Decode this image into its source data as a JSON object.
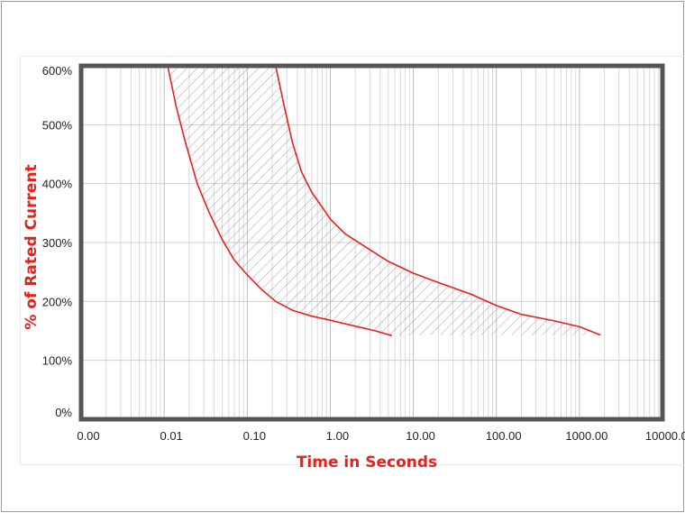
{
  "chart_data": {
    "type": "line",
    "title": "",
    "xlabel": "Time in Seconds",
    "ylabel": "% of Rated Current",
    "x_scale": "log",
    "xlim": [
      0.001,
      10000
    ],
    "ylim": [
      0,
      600
    ],
    "x_ticks": [
      {
        "value": 0.001,
        "label": "0.00"
      },
      {
        "value": 0.01,
        "label": "0.01"
      },
      {
        "value": 0.1,
        "label": "0.10"
      },
      {
        "value": 1,
        "label": "1.00"
      },
      {
        "value": 10,
        "label": "10.00"
      },
      {
        "value": 100,
        "label": "100.00"
      },
      {
        "value": 1000,
        "label": "1000.00"
      },
      {
        "value": 10000,
        "label": "10000.00"
      }
    ],
    "y_ticks": [
      {
        "value": 0,
        "label": "0%"
      },
      {
        "value": 100,
        "label": "100%"
      },
      {
        "value": 200,
        "label": "200%"
      },
      {
        "value": 300,
        "label": "300%"
      },
      {
        "value": 400,
        "label": "400%"
      },
      {
        "value": 500,
        "label": "500%"
      },
      {
        "value": 600,
        "label": "600%"
      }
    ],
    "grid": true,
    "legend": "none",
    "series": [
      {
        "color": "#e8211d",
        "x": [
          0.011,
          0.014,
          0.018,
          0.025,
          0.035,
          0.05,
          0.07,
          0.1,
          0.15,
          0.22,
          0.35,
          0.6,
          1.0,
          2.0,
          3.5,
          5.5
        ],
        "y": [
          600,
          530,
          470,
          400,
          350,
          305,
          270,
          245,
          220,
          200,
          185,
          175,
          168,
          158,
          150,
          142
        ]
      },
      {
        "color": "#e8211d",
        "x": [
          0.22,
          0.28,
          0.35,
          0.45,
          0.6,
          0.8,
          1.0,
          1.5,
          2.5,
          5.0,
          10,
          20,
          50,
          100,
          200,
          500,
          1000,
          1800
        ],
        "y": [
          600,
          530,
          470,
          420,
          385,
          360,
          340,
          315,
          295,
          268,
          248,
          232,
          212,
          193,
          178,
          167,
          157,
          143
        ]
      }
    ],
    "band": {
      "fill": "hatched",
      "between_series": [
        0,
        1
      ]
    }
  }
}
